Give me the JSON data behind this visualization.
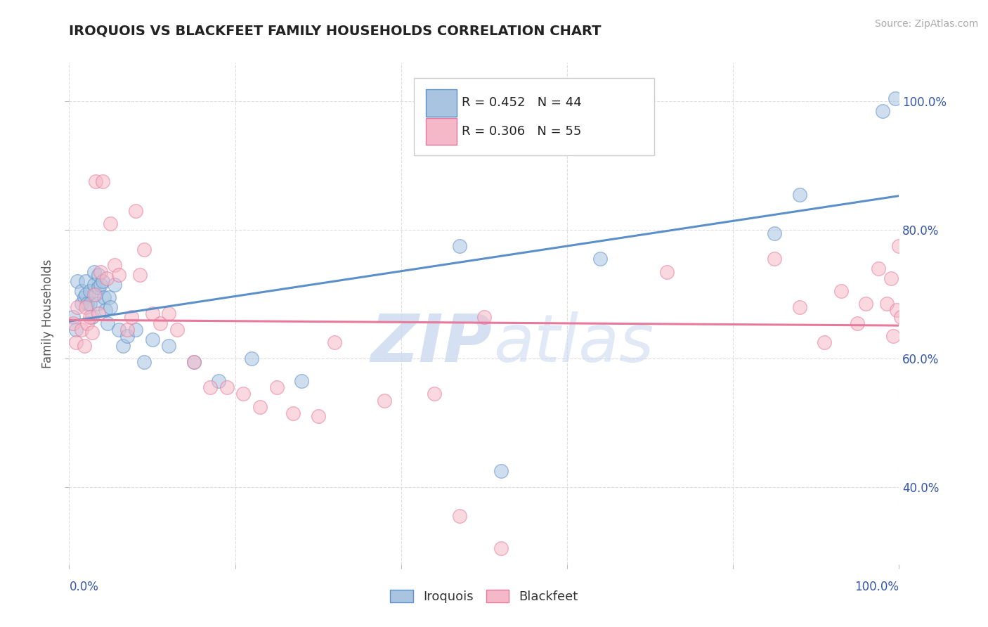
{
  "title": "IROQUOIS VS BLACKFEET FAMILY HOUSEHOLDS CORRELATION CHART",
  "source": "Source: ZipAtlas.com",
  "ylabel": "Family Households",
  "blue_label": "Iroquois",
  "pink_label": "Blackfeet",
  "blue_R": 0.452,
  "blue_N": 44,
  "pink_R": 0.306,
  "pink_N": 55,
  "blue_color": "#5B8FC9",
  "pink_color": "#E8799A",
  "blue_face": "#A8C4E0",
  "pink_face": "#F5B8C8",
  "blue_line": "#5B8FC9",
  "pink_line": "#E8799A",
  "watermark_zip": "ZIP",
  "watermark_atlas": "atlas",
  "xlim": [
    0.0,
    1.0
  ],
  "ylim": [
    0.28,
    1.06
  ],
  "yticks": [
    0.4,
    0.6,
    0.8,
    1.0
  ],
  "xticks": [
    0.0,
    0.2,
    0.4,
    0.6,
    0.8,
    1.0
  ],
  "grid_color": "#DDDDDD",
  "iroquois_x": [
    0.005,
    0.008,
    0.01,
    0.015,
    0.015,
    0.018,
    0.02,
    0.02,
    0.022,
    0.025,
    0.025,
    0.028,
    0.03,
    0.03,
    0.032,
    0.034,
    0.035,
    0.035,
    0.038,
    0.04,
    0.042,
    0.044,
    0.046,
    0.048,
    0.05,
    0.055,
    0.06,
    0.065,
    0.07,
    0.08,
    0.09,
    0.1,
    0.12,
    0.15,
    0.18,
    0.22,
    0.28,
    0.47,
    0.52,
    0.64,
    0.85,
    0.88,
    0.98,
    0.995
  ],
  "iroquois_y": [
    0.665,
    0.645,
    0.72,
    0.705,
    0.685,
    0.695,
    0.72,
    0.7,
    0.685,
    0.705,
    0.685,
    0.665,
    0.735,
    0.715,
    0.7,
    0.685,
    0.73,
    0.71,
    0.715,
    0.72,
    0.695,
    0.675,
    0.655,
    0.695,
    0.68,
    0.715,
    0.645,
    0.62,
    0.635,
    0.645,
    0.595,
    0.63,
    0.62,
    0.595,
    0.565,
    0.6,
    0.565,
    0.775,
    0.425,
    0.755,
    0.795,
    0.855,
    0.985,
    1.005
  ],
  "blackfeet_x": [
    0.005,
    0.008,
    0.01,
    0.015,
    0.018,
    0.02,
    0.022,
    0.025,
    0.028,
    0.03,
    0.032,
    0.035,
    0.038,
    0.04,
    0.045,
    0.05,
    0.055,
    0.06,
    0.07,
    0.075,
    0.08,
    0.085,
    0.09,
    0.1,
    0.11,
    0.12,
    0.13,
    0.15,
    0.17,
    0.19,
    0.21,
    0.23,
    0.25,
    0.27,
    0.3,
    0.32,
    0.38,
    0.44,
    0.47,
    0.5,
    0.52,
    0.72,
    0.85,
    0.88,
    0.91,
    0.93,
    0.95,
    0.96,
    0.975,
    0.985,
    0.99,
    0.993,
    0.997,
    1.0,
    1.002
  ],
  "blackfeet_y": [
    0.655,
    0.625,
    0.68,
    0.645,
    0.62,
    0.68,
    0.655,
    0.665,
    0.64,
    0.7,
    0.875,
    0.67,
    0.735,
    0.875,
    0.725,
    0.81,
    0.745,
    0.73,
    0.645,
    0.665,
    0.83,
    0.73,
    0.77,
    0.67,
    0.655,
    0.67,
    0.645,
    0.595,
    0.555,
    0.555,
    0.545,
    0.525,
    0.555,
    0.515,
    0.51,
    0.625,
    0.535,
    0.545,
    0.355,
    0.665,
    0.305,
    0.735,
    0.755,
    0.68,
    0.625,
    0.705,
    0.655,
    0.685,
    0.74,
    0.685,
    0.725,
    0.635,
    0.675,
    0.775,
    0.665
  ]
}
